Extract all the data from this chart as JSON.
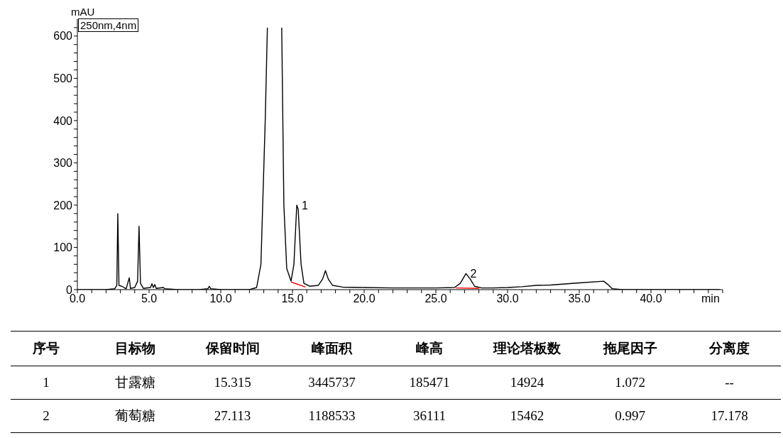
{
  "chart_data": [
    {
      "type": "line",
      "xlabel": "min",
      "ylabel": "mAU",
      "xlim": [
        0,
        45
      ],
      "ylim": [
        0,
        640
      ],
      "xticks": [
        {
          "value": 0,
          "label": "0.0"
        },
        {
          "value": 1,
          "label": null
        },
        {
          "value": 2,
          "label": null
        },
        {
          "value": 3,
          "label": null
        },
        {
          "value": 4,
          "label": null
        },
        {
          "value": 5,
          "label": "5.0"
        },
        {
          "value": 6,
          "label": null
        },
        {
          "value": 7,
          "label": null
        },
        {
          "value": 8,
          "label": null
        },
        {
          "value": 9,
          "label": null
        },
        {
          "value": 10,
          "label": "10.0"
        },
        {
          "value": 11,
          "label": null
        },
        {
          "value": 12,
          "label": null
        },
        {
          "value": 13,
          "label": null
        },
        {
          "value": 14,
          "label": null
        },
        {
          "value": 15,
          "label": "15.0"
        },
        {
          "value": 16,
          "label": null
        },
        {
          "value": 17,
          "label": null
        },
        {
          "value": 18,
          "label": null
        },
        {
          "value": 19,
          "label": null
        },
        {
          "value": 20,
          "label": "20.0"
        },
        {
          "value": 21,
          "label": null
        },
        {
          "value": 22,
          "label": null
        },
        {
          "value": 23,
          "label": null
        },
        {
          "value": 24,
          "label": null
        },
        {
          "value": 25,
          "label": "25.0"
        },
        {
          "value": 26,
          "label": null
        },
        {
          "value": 27,
          "label": null
        },
        {
          "value": 28,
          "label": null
        },
        {
          "value": 29,
          "label": null
        },
        {
          "value": 30,
          "label": "30.0"
        },
        {
          "value": 31,
          "label": null
        },
        {
          "value": 32,
          "label": null
        },
        {
          "value": 33,
          "label": null
        },
        {
          "value": 34,
          "label": null
        },
        {
          "value": 35,
          "label": "35.0"
        },
        {
          "value": 36,
          "label": null
        },
        {
          "value": 37,
          "label": null
        },
        {
          "value": 38,
          "label": null
        },
        {
          "value": 39,
          "label": null
        },
        {
          "value": 40,
          "label": "40.0"
        },
        {
          "value": 41,
          "label": null
        },
        {
          "value": 42,
          "label": null
        },
        {
          "value": 43,
          "label": null
        },
        {
          "value": 44,
          "label": null
        },
        {
          "value": 45,
          "label": null
        }
      ],
      "yticks": [
        0,
        {
          "value": 20,
          "label": null
        },
        {
          "value": 40,
          "label": null
        },
        {
          "value": 60,
          "label": null
        },
        {
          "value": 80,
          "label": null
        },
        100,
        {
          "value": 120,
          "label": null
        },
        {
          "value": 140,
          "label": null
        },
        {
          "value": 160,
          "label": null
        },
        {
          "value": 180,
          "label": null
        },
        200,
        {
          "value": 220,
          "label": null
        },
        {
          "value": 240,
          "label": null
        },
        {
          "value": 260,
          "label": null
        },
        {
          "value": 280,
          "label": null
        },
        300,
        {
          "value": 320,
          "label": null
        },
        {
          "value": 340,
          "label": null
        },
        {
          "value": 360,
          "label": null
        },
        {
          "value": 380,
          "label": null
        },
        400,
        {
          "value": 420,
          "label": null
        },
        {
          "value": 440,
          "label": null
        },
        {
          "value": 460,
          "label": null
        },
        {
          "value": 480,
          "label": null
        },
        500,
        {
          "value": 520,
          "label": null
        },
        {
          "value": 540,
          "label": null
        },
        {
          "value": 560,
          "label": null
        },
        {
          "value": 580,
          "label": null
        },
        600,
        {
          "value": 620,
          "label": null
        }
      ],
      "marker": "none",
      "line_style": "solid",
      "annotations": [
        "250nm,4nm",
        {
          "text": "1",
          "x": 15.35,
          "y": 200
        },
        {
          "text": "2",
          "x": 27.1,
          "y": 38
        }
      ],
      "series": [
        {
          "color": "#000000",
          "x": [
            0,
            2.0,
            2.6,
            2.75,
            2.82,
            2.9,
            3.1,
            3.4,
            3.62,
            3.7,
            4.0,
            4.2,
            4.3,
            4.4,
            4.6,
            5.1,
            5.2,
            5.3,
            5.4,
            5.5,
            6.0,
            6.1,
            7,
            8.5,
            9.1,
            9.2,
            9.3,
            10,
            12.0,
            12.5,
            12.8,
            13.1,
            13.25,
            13.7,
            14.25,
            14.4,
            14.6,
            14.9,
            15.1,
            15.3,
            15.4,
            15.6,
            15.8,
            16.2,
            16.8,
            17.1,
            17.3,
            17.5,
            17.8,
            18.5,
            20,
            22,
            25,
            26.3,
            26.7,
            27.1,
            27.4,
            27.7,
            28.2,
            29,
            30,
            31,
            32,
            33,
            35,
            36.7,
            37,
            37.3,
            38,
            40,
            41,
            44.8
          ],
          "values": [
            0,
            0,
            2,
            10,
            180,
            10,
            8,
            2,
            28,
            3,
            5,
            20,
            150,
            15,
            3,
            5,
            14,
            5,
            12,
            3,
            5,
            2,
            0,
            0,
            2,
            8,
            2,
            0,
            0,
            5,
            60,
            400,
            620,
            null,
            620,
            200,
            50,
            20,
            60,
            200,
            190,
            60,
            15,
            8,
            10,
            25,
            45,
            25,
            10,
            6,
            5,
            4,
            4,
            5,
            15,
            38,
            25,
            8,
            4,
            4,
            5,
            7,
            10,
            11,
            16,
            20,
            12,
            2,
            0,
            0,
            0,
            0
          ]
        },
        {
          "color": "#ff0000",
          "x": [
            14.9,
            15.9
          ],
          "values": [
            18,
            6
          ]
        },
        {
          "color": "#ff0000",
          "x": [
            26.4,
            28.0
          ],
          "values": [
            4,
            3
          ]
        }
      ]
    },
    {
      "type": "other",
      "annotations": [
        "序号",
        "目标物",
        "保留时间",
        "峰面积",
        "峰高",
        "理论塔板数",
        "拖尾因子",
        "分离度",
        "1",
        "甘露糖",
        "15.315",
        "3445737",
        "185471",
        "14924",
        "1.072",
        "--",
        "2",
        "葡萄糖",
        "27.113",
        "1188533",
        "36111",
        "15462",
        "0.997",
        "17.178"
      ]
    }
  ]
}
